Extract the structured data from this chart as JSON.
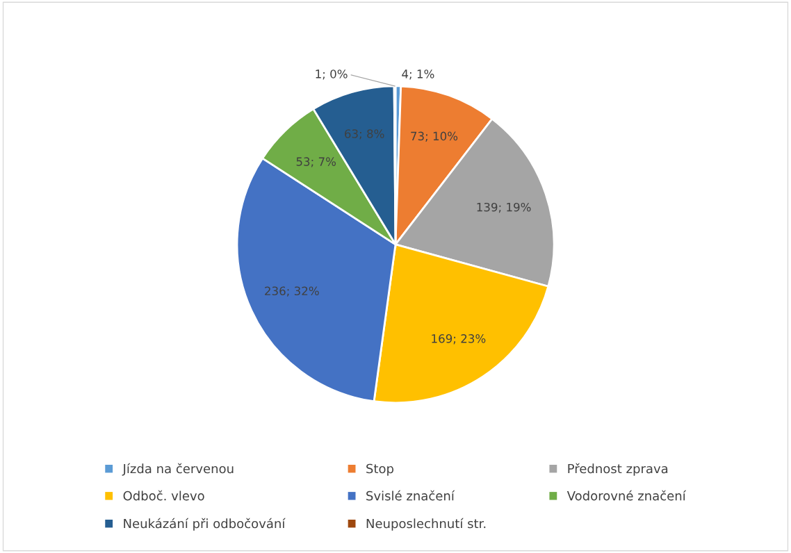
{
  "chart_data": {
    "type": "pie",
    "categories": [
      "Jízda na červenou",
      "Stop",
      "Přednost zprava",
      "Odboč. vlevo",
      "Svislé značení",
      "Vodorovné značení",
      "Neukázání při odbočování",
      "Neuposlechnutí str."
    ],
    "values": [
      4,
      73,
      139,
      169,
      236,
      53,
      63,
      1
    ],
    "colors": [
      "#5b9bd5",
      "#ed7d31",
      "#a5a5a5",
      "#ffc000",
      "#4472c4",
      "#70ad47",
      "#255e91",
      "#9e480e"
    ],
    "value_labels": [
      "4; 1%",
      "73; 10%",
      "139; 19%",
      "169; 23%",
      "236; 32%",
      "53; 7%",
      "63; 8%",
      "1; 0%"
    ],
    "legend": "bottom"
  }
}
